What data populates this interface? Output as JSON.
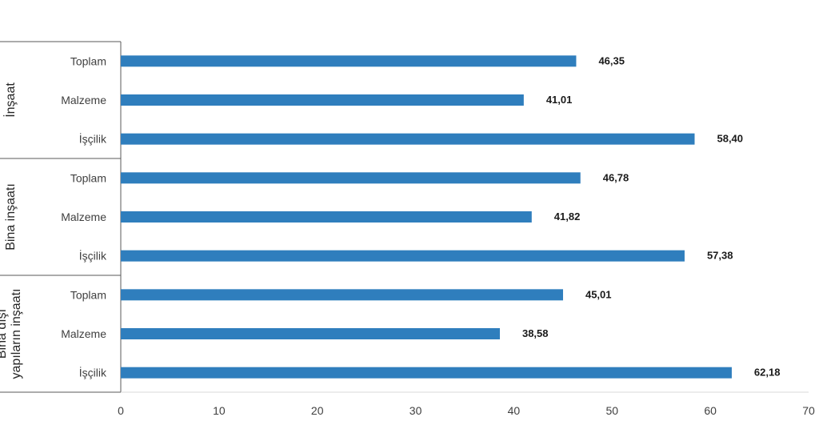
{
  "chart_data": {
    "type": "bar",
    "orientation": "horizontal",
    "bar_color": "#2f7ebd",
    "xlim": [
      0,
      70
    ],
    "x_ticks": [
      "0",
      "10",
      "20",
      "30",
      "40",
      "50",
      "60",
      "70"
    ],
    "grid": false,
    "groups": [
      {
        "name": "İnşaat",
        "bars": [
          {
            "label": "Toplam",
            "value": 46.35,
            "value_label": "46,35"
          },
          {
            "label": "Malzeme",
            "value": 41.01,
            "value_label": "41,01"
          },
          {
            "label": "İşçilik",
            "value": 58.4,
            "value_label": "58,40"
          }
        ]
      },
      {
        "name": "Bina inşaatı",
        "bars": [
          {
            "label": "Toplam",
            "value": 46.78,
            "value_label": "46,78"
          },
          {
            "label": "Malzeme",
            "value": 41.82,
            "value_label": "41,82"
          },
          {
            "label": "İşçilik",
            "value": 57.38,
            "value_label": "57,38"
          }
        ]
      },
      {
        "name_lines": [
          "Bina dışı",
          "yapıların inşaatı"
        ],
        "bars": [
          {
            "label": "Toplam",
            "value": 45.01,
            "value_label": "45,01"
          },
          {
            "label": "Malzeme",
            "value": 38.58,
            "value_label": "38,58"
          },
          {
            "label": "İşçilik",
            "value": 62.18,
            "value_label": "62,18"
          }
        ]
      }
    ]
  }
}
